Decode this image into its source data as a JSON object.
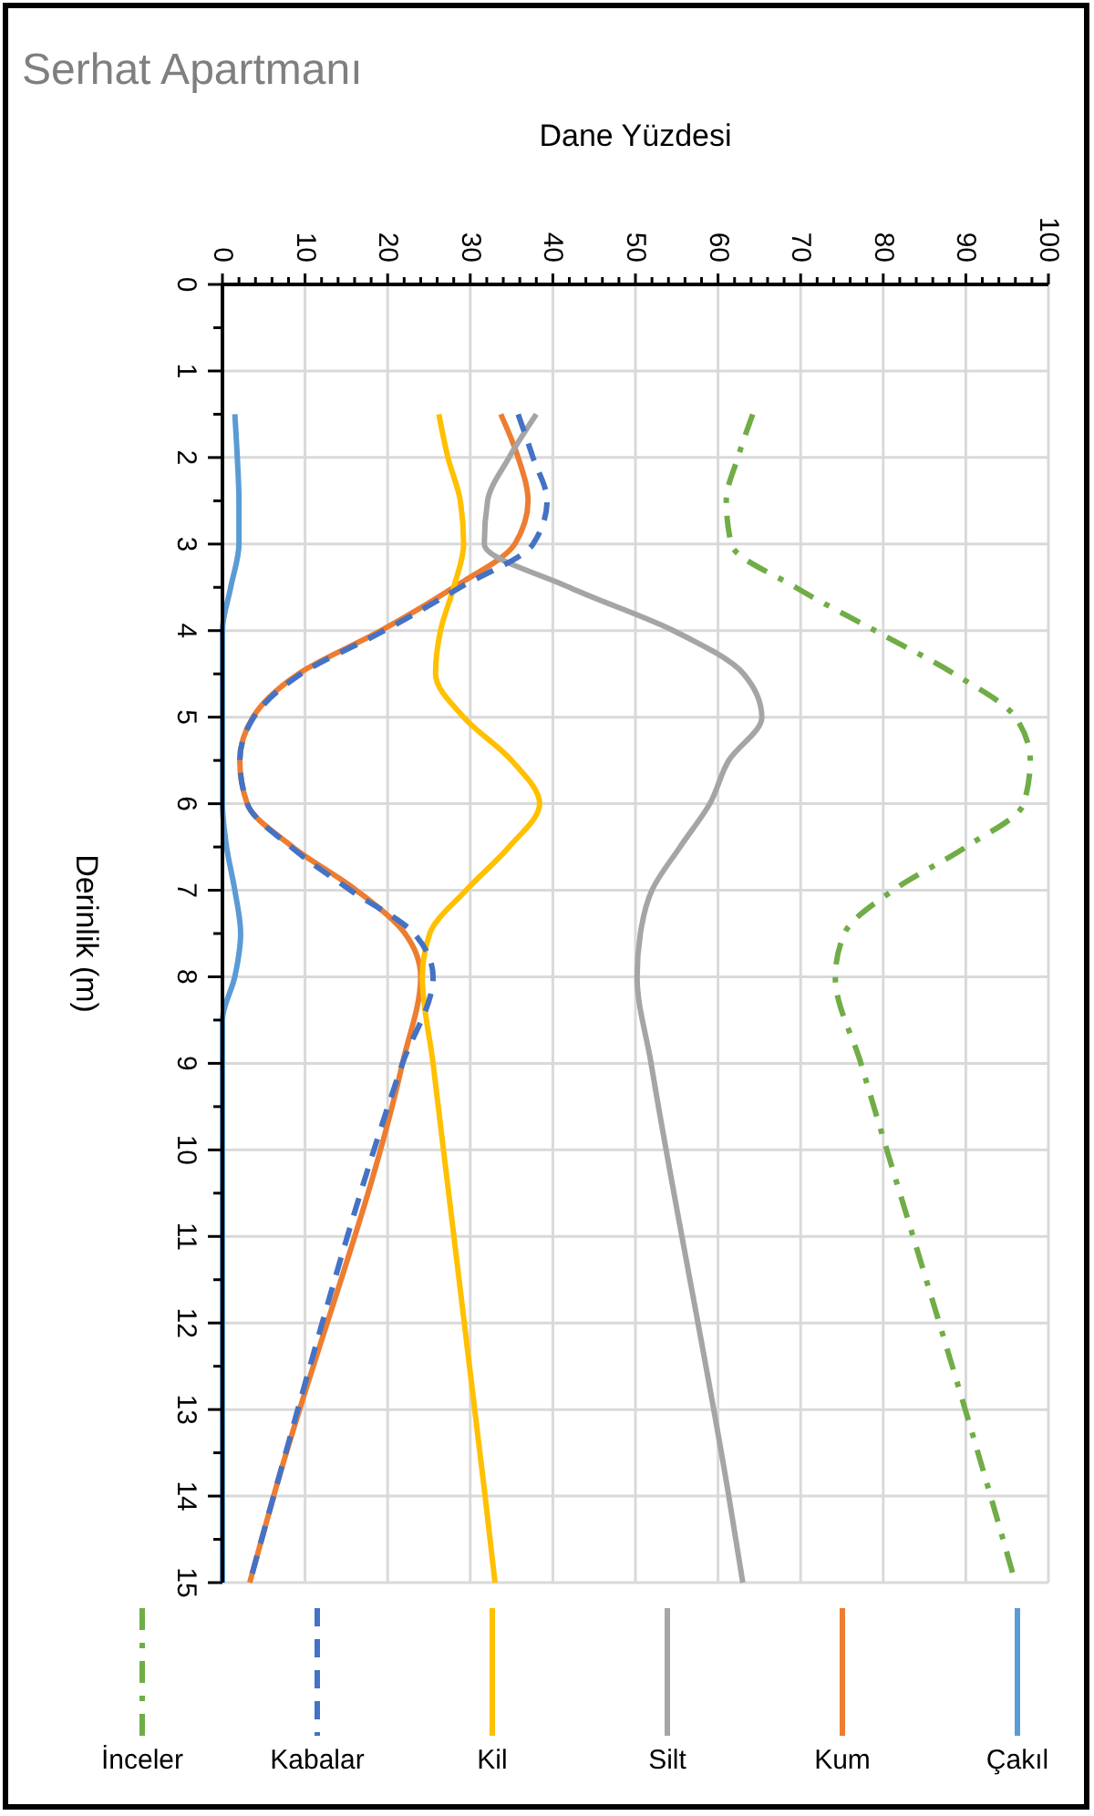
{
  "chart_data": {
    "type": "line",
    "title": "Serhat Apartmanı",
    "xlabel": "Dane Yüzdesi",
    "ylabel": "Derinlik (m)",
    "orientation": "horizontal",
    "xlim": [
      0,
      100
    ],
    "xticks": [
      0,
      {
        "value": 2,
        "label": null
      },
      {
        "value": 4,
        "label": null
      },
      {
        "value": 6,
        "label": null
      },
      {
        "value": 8,
        "label": null
      },
      10,
      {
        "value": 12,
        "label": null
      },
      {
        "value": 14,
        "label": null
      },
      {
        "value": 16,
        "label": null
      },
      {
        "value": 18,
        "label": null
      },
      20,
      {
        "value": 22,
        "label": null
      },
      {
        "value": 24,
        "label": null
      },
      {
        "value": 26,
        "label": null
      },
      {
        "value": 28,
        "label": null
      },
      30,
      {
        "value": 32,
        "label": null
      },
      {
        "value": 34,
        "label": null
      },
      {
        "value": 36,
        "label": null
      },
      {
        "value": 38,
        "label": null
      },
      40,
      {
        "value": 42,
        "label": null
      },
      {
        "value": 44,
        "label": null
      },
      {
        "value": 46,
        "label": null
      },
      {
        "value": 48,
        "label": null
      },
      50,
      {
        "value": 52,
        "label": null
      },
      {
        "value": 54,
        "label": null
      },
      {
        "value": 56,
        "label": null
      },
      {
        "value": 58,
        "label": null
      },
      60,
      {
        "value": 62,
        "label": null
      },
      {
        "value": 64,
        "label": null
      },
      {
        "value": 66,
        "label": null
      },
      {
        "value": 68,
        "label": null
      },
      70,
      {
        "value": 72,
        "label": null
      },
      {
        "value": 74,
        "label": null
      },
      {
        "value": 76,
        "label": null
      },
      {
        "value": 78,
        "label": null
      },
      80,
      {
        "value": 82,
        "label": null
      },
      {
        "value": 84,
        "label": null
      },
      {
        "value": 86,
        "label": null
      },
      {
        "value": 88,
        "label": null
      },
      90,
      {
        "value": 92,
        "label": null
      },
      {
        "value": 94,
        "label": null
      },
      {
        "value": 96,
        "label": null
      },
      {
        "value": 98,
        "label": null
      },
      100
    ],
    "ylim": [
      15,
      0
    ],
    "yticks": [
      0,
      {
        "value": 0.5,
        "label": null
      },
      1,
      {
        "value": 1.5,
        "label": null
      },
      2,
      {
        "value": 2.5,
        "label": null
      },
      3,
      {
        "value": 3.5,
        "label": null
      },
      4,
      {
        "value": 4.5,
        "label": null
      },
      5,
      {
        "value": 5.5,
        "label": null
      },
      6,
      {
        "value": 6.5,
        "label": null
      },
      7,
      {
        "value": 7.5,
        "label": null
      },
      8,
      {
        "value": 8.5,
        "label": null
      },
      9,
      {
        "value": 9.5,
        "label": null
      },
      10,
      {
        "value": 10.5,
        "label": null
      },
      11,
      {
        "value": 11.5,
        "label": null
      },
      12,
      {
        "value": 12.5,
        "label": null
      },
      13,
      {
        "value": 13.5,
        "label": null
      },
      14,
      {
        "value": 14.5,
        "label": null
      },
      15
    ],
    "grid": true,
    "legend": "bottom",
    "series": [
      {
        "name": "İnceler",
        "color": "#70ad47",
        "line_style": "dotted",
        "x": [
          1.5,
          2,
          2.5,
          3,
          3.5,
          4,
          4.5,
          5,
          5.5,
          6,
          6.5,
          7,
          7.5,
          8,
          9,
          14,
          15
        ],
        "values": [
          64.2,
          62.4,
          61,
          61.6,
          69.4,
          79,
          88.6,
          96,
          97.8,
          97,
          90,
          81.2,
          75.3,
          74.2,
          77.3,
          93,
          96
        ]
      },
      {
        "name": "Kabalar",
        "color": "#4472c4",
        "line_style": "dashed",
        "x": [
          1.5,
          2,
          2.5,
          3,
          3.5,
          4,
          4.5,
          5,
          5.5,
          6,
          6.5,
          7,
          7.5,
          8,
          9,
          14,
          15
        ],
        "values": [
          35.8,
          37.6,
          39.3,
          37.6,
          28.8,
          19.6,
          9.5,
          3.8,
          2.1,
          3,
          8.3,
          15.5,
          23.2,
          25.5,
          21.8,
          6.2,
          3.3
        ]
      },
      {
        "name": "Kil",
        "color": "#ffc000",
        "line_style": "solid",
        "x": [
          1.5,
          2,
          2.5,
          3,
          3.5,
          4,
          4.5,
          5,
          5.5,
          6,
          6.5,
          7,
          7.5,
          8,
          9,
          14,
          15
        ],
        "values": [
          26.2,
          27.3,
          28.8,
          29.2,
          28,
          26.4,
          25.8,
          29.2,
          35,
          38.4,
          34.7,
          29.5,
          25.1,
          24.2,
          25.5,
          31.8,
          33
        ]
      },
      {
        "name": "Silt",
        "color": "#a5a5a5",
        "line_style": "solid",
        "x": [
          1.5,
          2,
          2.5,
          3,
          3.5,
          4,
          4.5,
          5,
          5.5,
          6,
          6.5,
          7,
          7.5,
          8,
          9,
          14,
          15
        ],
        "values": [
          38,
          34.7,
          32.1,
          31.7,
          42,
          54.6,
          63.1,
          65.3,
          61.3,
          59,
          55.4,
          52,
          50.6,
          50.2,
          51.9,
          61.3,
          63
        ]
      },
      {
        "name": "Kum",
        "color": "#ed7d31",
        "line_style": "solid",
        "x": [
          1.5,
          2,
          2.5,
          3,
          3.5,
          4,
          4.5,
          5,
          5.5,
          6,
          6.5,
          7,
          7.5,
          8,
          9,
          14,
          15
        ],
        "values": [
          33.7,
          35.8,
          37,
          35.4,
          28,
          19.2,
          9.2,
          3.7,
          2.1,
          3,
          8.5,
          16.2,
          22.1,
          24,
          21.8,
          6.2,
          3.3
        ]
      },
      {
        "name": "Çakıl",
        "color": "#5b9bd5",
        "line_style": "solid",
        "x": [
          1.5,
          2,
          2.5,
          3,
          3.5,
          4,
          4.5,
          5,
          5.5,
          6,
          6.5,
          7,
          7.5,
          8,
          8.5,
          9,
          15
        ],
        "values": [
          1.5,
          1.8,
          2,
          2,
          1,
          0,
          0,
          0,
          0,
          0,
          0.5,
          1.5,
          2.2,
          1.5,
          0,
          0,
          0
        ]
      }
    ]
  }
}
